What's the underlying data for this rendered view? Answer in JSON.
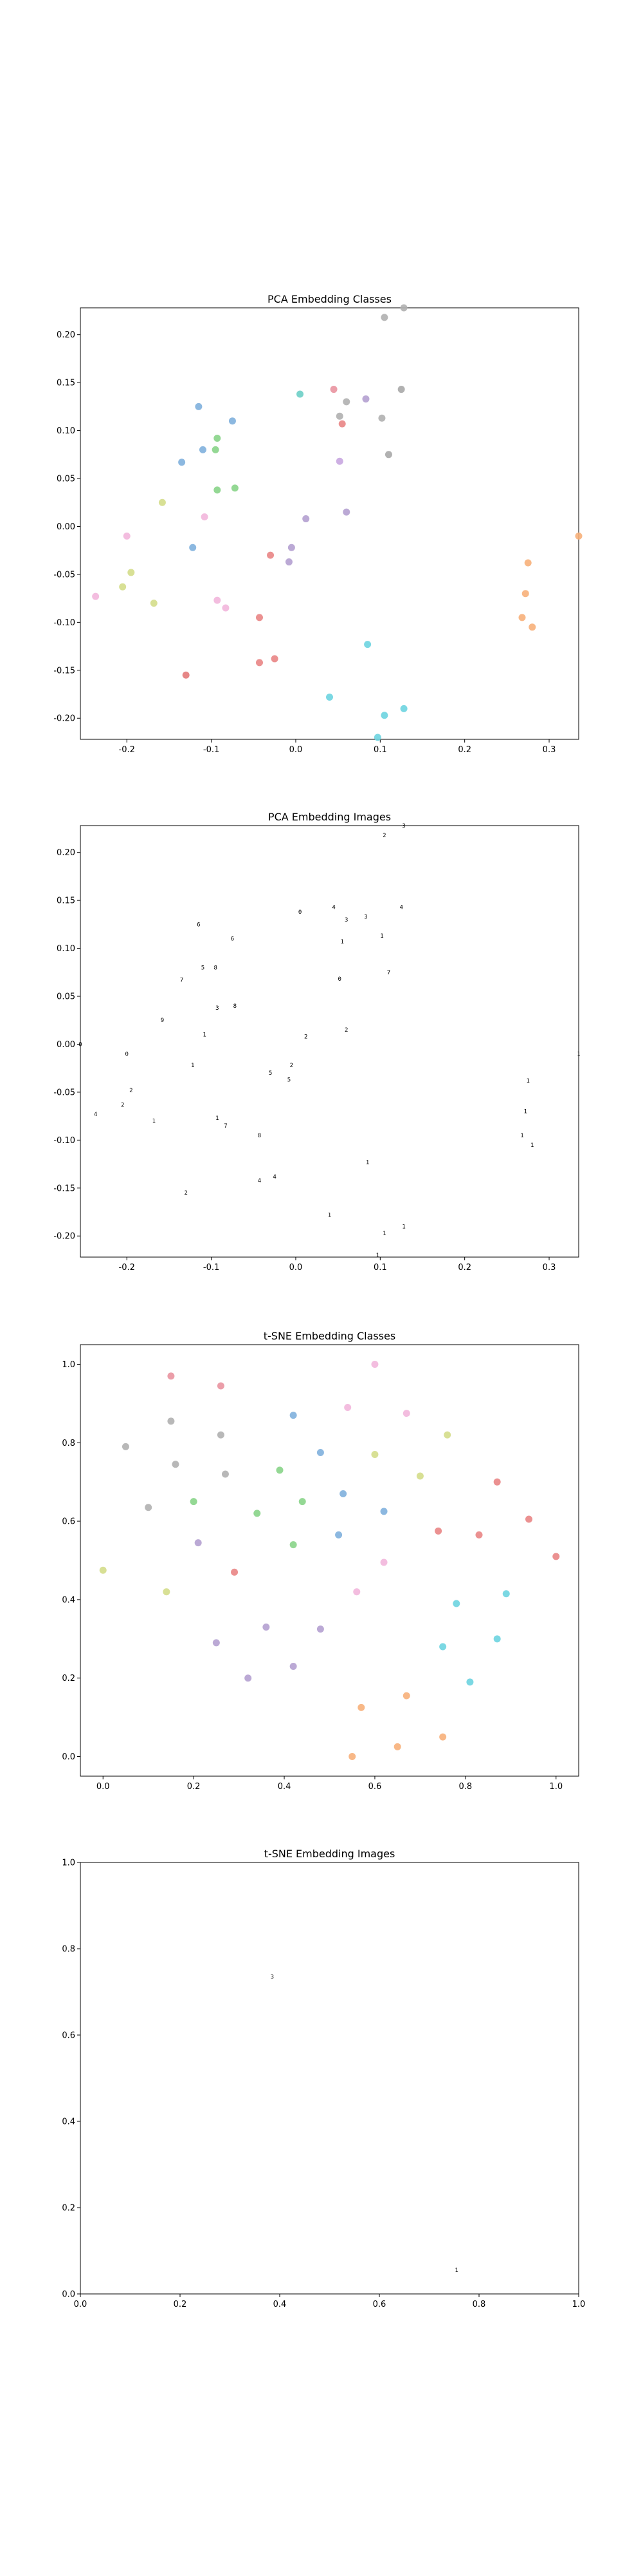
{
  "chart_data": [
    {
      "type": "scatter",
      "title": "PCA Embedding Classes",
      "xlabel": "",
      "ylabel": "",
      "xlim": [
        -0.255,
        0.335
      ],
      "ylim": [
        -0.222,
        0.228
      ],
      "xticks": [
        "-0.2",
        "-0.1",
        "0.0",
        "0.1",
        "0.2",
        "0.3"
      ],
      "yticks": [
        "-0.20",
        "-0.15",
        "-0.10",
        "-0.05",
        "0.00",
        "0.05",
        "0.10",
        "0.15",
        "0.20"
      ],
      "grid": false,
      "points": [
        {
          "x": 0.105,
          "y": 0.218,
          "color": "#b0b0b0"
        },
        {
          "x": 0.128,
          "y": 0.228,
          "color": "#b0b0b0"
        },
        {
          "x": 0.045,
          "y": 0.143,
          "color": "#e993a0"
        },
        {
          "x": 0.125,
          "y": 0.143,
          "color": "#a9a9a9"
        },
        {
          "x": 0.005,
          "y": 0.138,
          "color": "#6dcfc7"
        },
        {
          "x": 0.083,
          "y": 0.133,
          "color": "#b4a0d0"
        },
        {
          "x": 0.06,
          "y": 0.13,
          "color": "#b0b0b0"
        },
        {
          "x": -0.115,
          "y": 0.125,
          "color": "#7fb0dd"
        },
        {
          "x": 0.052,
          "y": 0.115,
          "color": "#b0b0b0"
        },
        {
          "x": 0.102,
          "y": 0.113,
          "color": "#b0b0b0"
        },
        {
          "x": -0.075,
          "y": 0.11,
          "color": "#7fb0dd"
        },
        {
          "x": 0.055,
          "y": 0.107,
          "color": "#e98585"
        },
        {
          "x": -0.093,
          "y": 0.092,
          "color": "#88d488"
        },
        {
          "x": -0.11,
          "y": 0.08,
          "color": "#7fb0dd"
        },
        {
          "x": -0.095,
          "y": 0.08,
          "color": "#88d488"
        },
        {
          "x": 0.11,
          "y": 0.075,
          "color": "#a9a9a9"
        },
        {
          "x": -0.135,
          "y": 0.067,
          "color": "#7fb0dd"
        },
        {
          "x": 0.052,
          "y": 0.068,
          "color": "#c8a6e0"
        },
        {
          "x": -0.093,
          "y": 0.038,
          "color": "#88d488"
        },
        {
          "x": -0.072,
          "y": 0.04,
          "color": "#88d488"
        },
        {
          "x": -0.158,
          "y": 0.025,
          "color": "#d4dd8a"
        },
        {
          "x": 0.06,
          "y": 0.015,
          "color": "#b4a0d0"
        },
        {
          "x": -0.108,
          "y": 0.01,
          "color": "#f2b6dc"
        },
        {
          "x": 0.012,
          "y": 0.008,
          "color": "#b4a0d0"
        },
        {
          "x": 0.335,
          "y": -0.01,
          "color": "#f7b07a"
        },
        {
          "x": -0.2,
          "y": -0.01,
          "color": "#f2b6dc"
        },
        {
          "x": -0.122,
          "y": -0.022,
          "color": "#7fb0dd"
        },
        {
          "x": -0.005,
          "y": -0.022,
          "color": "#b4a0d0"
        },
        {
          "x": -0.03,
          "y": -0.03,
          "color": "#e98585"
        },
        {
          "x": -0.008,
          "y": -0.037,
          "color": "#b4a0d0"
        },
        {
          "x": 0.275,
          "y": -0.038,
          "color": "#f7b07a"
        },
        {
          "x": -0.195,
          "y": -0.048,
          "color": "#d4dd8a"
        },
        {
          "x": -0.205,
          "y": -0.063,
          "color": "#d4dd8a"
        },
        {
          "x": 0.272,
          "y": -0.07,
          "color": "#f7b07a"
        },
        {
          "x": -0.237,
          "y": -0.073,
          "color": "#f2b6dc"
        },
        {
          "x": -0.093,
          "y": -0.077,
          "color": "#f2b6dc"
        },
        {
          "x": -0.168,
          "y": -0.08,
          "color": "#d4dd8a"
        },
        {
          "x": -0.083,
          "y": -0.085,
          "color": "#f2b6dc"
        },
        {
          "x": 0.268,
          "y": -0.095,
          "color": "#f7b07a"
        },
        {
          "x": -0.043,
          "y": -0.095,
          "color": "#e98585"
        },
        {
          "x": 0.28,
          "y": -0.105,
          "color": "#f7b07a"
        },
        {
          "x": 0.085,
          "y": -0.123,
          "color": "#6dd4e0"
        },
        {
          "x": -0.025,
          "y": -0.138,
          "color": "#e98585"
        },
        {
          "x": -0.043,
          "y": -0.142,
          "color": "#e98585"
        },
        {
          "x": -0.13,
          "y": -0.155,
          "color": "#e37a7a"
        },
        {
          "x": 0.04,
          "y": -0.178,
          "color": "#6dd4e0"
        },
        {
          "x": 0.128,
          "y": -0.19,
          "color": "#6dd4e0"
        },
        {
          "x": 0.105,
          "y": -0.197,
          "color": "#6dd4e0"
        },
        {
          "x": 0.097,
          "y": -0.22,
          "color": "#6dd4e0"
        }
      ]
    },
    {
      "type": "scatter",
      "title": "PCA Embedding Images",
      "xlabel": "",
      "ylabel": "",
      "xlim": [
        -0.255,
        0.335
      ],
      "ylim": [
        -0.222,
        0.228
      ],
      "xticks": [
        "-0.2",
        "-0.1",
        "0.0",
        "0.1",
        "0.2",
        "0.3"
      ],
      "yticks": [
        "-0.20",
        "-0.15",
        "-0.10",
        "-0.05",
        "0.00",
        "0.05",
        "0.10",
        "0.15",
        "0.20"
      ],
      "grid": false,
      "marker": "small digit images",
      "points": [
        {
          "x": 0.105,
          "y": 0.218,
          "glyph": "2"
        },
        {
          "x": 0.128,
          "y": 0.228,
          "glyph": "3"
        },
        {
          "x": 0.045,
          "y": 0.143,
          "glyph": "4"
        },
        {
          "x": 0.125,
          "y": 0.143,
          "glyph": "4"
        },
        {
          "x": 0.005,
          "y": 0.138,
          "glyph": "0"
        },
        {
          "x": 0.083,
          "y": 0.133,
          "glyph": "3"
        },
        {
          "x": 0.06,
          "y": 0.13,
          "glyph": "3"
        },
        {
          "x": -0.115,
          "y": 0.125,
          "glyph": "6"
        },
        {
          "x": 0.102,
          "y": 0.113,
          "glyph": "1"
        },
        {
          "x": -0.075,
          "y": 0.11,
          "glyph": "6"
        },
        {
          "x": 0.055,
          "y": 0.107,
          "glyph": "1"
        },
        {
          "x": -0.11,
          "y": 0.08,
          "glyph": "5"
        },
        {
          "x": -0.095,
          "y": 0.08,
          "glyph": "8"
        },
        {
          "x": 0.11,
          "y": 0.075,
          "glyph": "7"
        },
        {
          "x": -0.135,
          "y": 0.067,
          "glyph": "7"
        },
        {
          "x": 0.052,
          "y": 0.068,
          "glyph": "0"
        },
        {
          "x": -0.093,
          "y": 0.038,
          "glyph": "3"
        },
        {
          "x": -0.072,
          "y": 0.04,
          "glyph": "8"
        },
        {
          "x": -0.158,
          "y": 0.025,
          "glyph": "9"
        },
        {
          "x": 0.06,
          "y": 0.015,
          "glyph": "2"
        },
        {
          "x": -0.108,
          "y": 0.01,
          "glyph": "1"
        },
        {
          "x": 0.012,
          "y": 0.008,
          "glyph": "2"
        },
        {
          "x": 0.335,
          "y": -0.01,
          "glyph": "1"
        },
        {
          "x": -0.255,
          "y": 0.0,
          "glyph": "0"
        },
        {
          "x": -0.2,
          "y": -0.01,
          "glyph": "0"
        },
        {
          "x": -0.122,
          "y": -0.022,
          "glyph": "1"
        },
        {
          "x": -0.005,
          "y": -0.022,
          "glyph": "2"
        },
        {
          "x": -0.03,
          "y": -0.03,
          "glyph": "5"
        },
        {
          "x": -0.008,
          "y": -0.037,
          "glyph": "5"
        },
        {
          "x": 0.275,
          "y": -0.038,
          "glyph": "1"
        },
        {
          "x": -0.195,
          "y": -0.048,
          "glyph": "2"
        },
        {
          "x": -0.205,
          "y": -0.063,
          "glyph": "2"
        },
        {
          "x": 0.272,
          "y": -0.07,
          "glyph": "1"
        },
        {
          "x": -0.237,
          "y": -0.073,
          "glyph": "4"
        },
        {
          "x": -0.093,
          "y": -0.077,
          "glyph": "1"
        },
        {
          "x": -0.168,
          "y": -0.08,
          "glyph": "1"
        },
        {
          "x": -0.083,
          "y": -0.085,
          "glyph": "7"
        },
        {
          "x": 0.268,
          "y": -0.095,
          "glyph": "1"
        },
        {
          "x": -0.043,
          "y": -0.095,
          "glyph": "8"
        },
        {
          "x": 0.28,
          "y": -0.105,
          "glyph": "1"
        },
        {
          "x": 0.085,
          "y": -0.123,
          "glyph": "1"
        },
        {
          "x": -0.025,
          "y": -0.138,
          "glyph": "4"
        },
        {
          "x": -0.043,
          "y": -0.142,
          "glyph": "4"
        },
        {
          "x": -0.13,
          "y": -0.155,
          "glyph": "2"
        },
        {
          "x": 0.04,
          "y": -0.178,
          "glyph": "1"
        },
        {
          "x": 0.128,
          "y": -0.19,
          "glyph": "1"
        },
        {
          "x": 0.105,
          "y": -0.197,
          "glyph": "1"
        },
        {
          "x": 0.097,
          "y": -0.22,
          "glyph": "1"
        }
      ]
    },
    {
      "type": "scatter",
      "title": "t-SNE Embedding Classes",
      "xlabel": "",
      "ylabel": "",
      "xlim": [
        -0.05,
        1.05
      ],
      "ylim": [
        -0.05,
        1.05
      ],
      "xticks": [
        "0.0",
        "0.2",
        "0.4",
        "0.6",
        "0.8",
        "1.0"
      ],
      "yticks": [
        "0.0",
        "0.2",
        "0.4",
        "0.6",
        "0.8",
        "1.0"
      ],
      "grid": false,
      "points": [
        {
          "x": 0.6,
          "y": 1.0,
          "color": "#f2b6dc"
        },
        {
          "x": 0.15,
          "y": 0.97,
          "color": "#e993a0"
        },
        {
          "x": 0.26,
          "y": 0.945,
          "color": "#e993a0"
        },
        {
          "x": 0.54,
          "y": 0.89,
          "color": "#f2b6dc"
        },
        {
          "x": 0.67,
          "y": 0.875,
          "color": "#f2b6dc"
        },
        {
          "x": 0.42,
          "y": 0.87,
          "color": "#7fb0dd"
        },
        {
          "x": 0.15,
          "y": 0.855,
          "color": "#b0b0b0"
        },
        {
          "x": 0.26,
          "y": 0.82,
          "color": "#b0b0b0"
        },
        {
          "x": 0.76,
          "y": 0.82,
          "color": "#d4dd8a"
        },
        {
          "x": 0.05,
          "y": 0.79,
          "color": "#b0b0b0"
        },
        {
          "x": 0.48,
          "y": 0.775,
          "color": "#7fb0dd"
        },
        {
          "x": 0.6,
          "y": 0.77,
          "color": "#d4dd8a"
        },
        {
          "x": 0.16,
          "y": 0.745,
          "color": "#b0b0b0"
        },
        {
          "x": 0.39,
          "y": 0.73,
          "color": "#88d488"
        },
        {
          "x": 0.27,
          "y": 0.72,
          "color": "#b0b0b0"
        },
        {
          "x": 0.7,
          "y": 0.715,
          "color": "#d4dd8a"
        },
        {
          "x": 0.87,
          "y": 0.7,
          "color": "#e98585"
        },
        {
          "x": 0.53,
          "y": 0.67,
          "color": "#7fb0dd"
        },
        {
          "x": 0.2,
          "y": 0.65,
          "color": "#88d488"
        },
        {
          "x": 0.44,
          "y": 0.65,
          "color": "#88d488"
        },
        {
          "x": 0.1,
          "y": 0.635,
          "color": "#b0b0b0"
        },
        {
          "x": 0.62,
          "y": 0.625,
          "color": "#7fb0dd"
        },
        {
          "x": 0.34,
          "y": 0.62,
          "color": "#88d488"
        },
        {
          "x": 0.94,
          "y": 0.605,
          "color": "#e98585"
        },
        {
          "x": 0.74,
          "y": 0.575,
          "color": "#e98585"
        },
        {
          "x": 0.52,
          "y": 0.565,
          "color": "#7fb0dd"
        },
        {
          "x": 0.83,
          "y": 0.565,
          "color": "#e98585"
        },
        {
          "x": 0.21,
          "y": 0.545,
          "color": "#b4a0d0"
        },
        {
          "x": 0.42,
          "y": 0.54,
          "color": "#88d488"
        },
        {
          "x": 1.0,
          "y": 0.51,
          "color": "#e98585"
        },
        {
          "x": 0.62,
          "y": 0.495,
          "color": "#f2b6dc"
        },
        {
          "x": 0.0,
          "y": 0.475,
          "color": "#d4dd8a"
        },
        {
          "x": 0.29,
          "y": 0.47,
          "color": "#e98585"
        },
        {
          "x": 0.56,
          "y": 0.42,
          "color": "#f2b6dc"
        },
        {
          "x": 0.14,
          "y": 0.42,
          "color": "#d4dd8a"
        },
        {
          "x": 0.89,
          "y": 0.415,
          "color": "#6dd4e0"
        },
        {
          "x": 0.78,
          "y": 0.39,
          "color": "#6dd4e0"
        },
        {
          "x": 0.36,
          "y": 0.33,
          "color": "#b4a0d0"
        },
        {
          "x": 0.48,
          "y": 0.325,
          "color": "#b4a0d0"
        },
        {
          "x": 0.87,
          "y": 0.3,
          "color": "#6dd4e0"
        },
        {
          "x": 0.25,
          "y": 0.29,
          "color": "#b4a0d0"
        },
        {
          "x": 0.75,
          "y": 0.28,
          "color": "#6dd4e0"
        },
        {
          "x": 0.42,
          "y": 0.23,
          "color": "#b4a0d0"
        },
        {
          "x": 0.32,
          "y": 0.2,
          "color": "#b4a0d0"
        },
        {
          "x": 0.81,
          "y": 0.19,
          "color": "#6dd4e0"
        },
        {
          "x": 0.67,
          "y": 0.155,
          "color": "#f7b07a"
        },
        {
          "x": 0.57,
          "y": 0.125,
          "color": "#f7b07a"
        },
        {
          "x": 0.75,
          "y": 0.05,
          "color": "#f7b07a"
        },
        {
          "x": 0.65,
          "y": 0.025,
          "color": "#f7b07a"
        },
        {
          "x": 0.55,
          "y": 0.0,
          "color": "#f7b07a"
        }
      ]
    },
    {
      "type": "scatter",
      "title": "t-SNE Embedding Images",
      "xlabel": "",
      "ylabel": "",
      "xlim": [
        0.0,
        1.0
      ],
      "ylim": [
        0.0,
        1.0
      ],
      "xticks": [
        "0.0",
        "0.2",
        "0.4",
        "0.6",
        "0.8",
        "1.0"
      ],
      "yticks": [
        "0.0",
        "0.2",
        "0.4",
        "0.6",
        "0.8",
        "1.0"
      ],
      "grid": false,
      "marker": "small digit images",
      "points": [
        {
          "x": 0.385,
          "y": 0.735,
          "glyph": "3"
        },
        {
          "x": 0.755,
          "y": 0.055,
          "glyph": "1"
        }
      ]
    }
  ]
}
